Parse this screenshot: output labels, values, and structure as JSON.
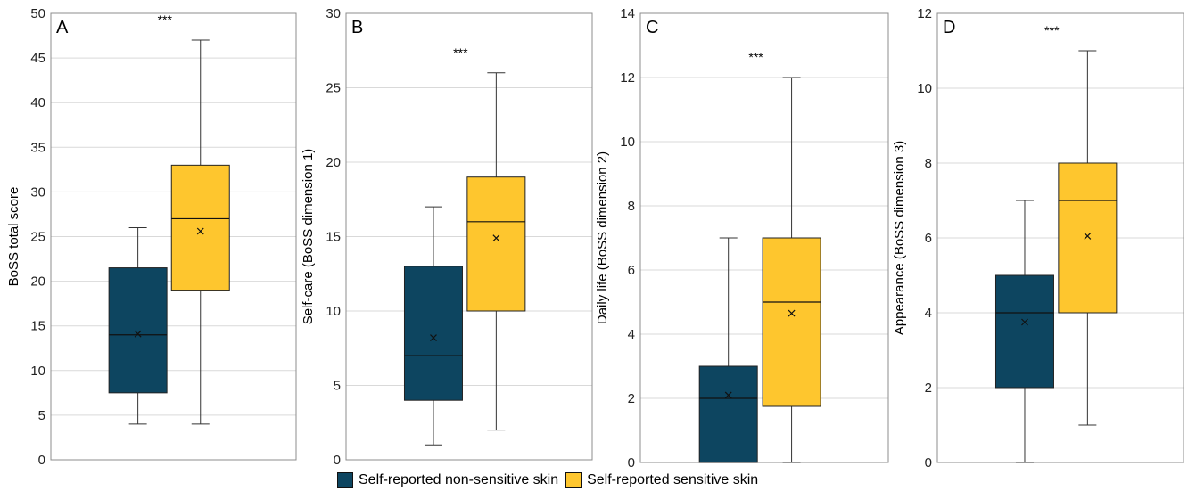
{
  "colors": {
    "non_sensitive": "#0d4560",
    "sensitive": "#fec62e",
    "grid": "#d9d9d9",
    "frame": "#8c8c8c"
  },
  "legend": {
    "items": [
      {
        "label": "Self-reported non-sensitive skin",
        "color": "#0d4560"
      },
      {
        "label": "Self-reported sensitive skin",
        "color": "#fec62e"
      }
    ]
  },
  "chart_data": [
    {
      "type": "box",
      "panel_label": "A",
      "significance": "***",
      "xlabel": "",
      "ylabel": "BoSS total score",
      "ylim": [
        0,
        50
      ],
      "ticks": [
        0,
        5,
        10,
        15,
        20,
        25,
        30,
        35,
        40,
        45,
        50
      ],
      "tick_labels": [
        "0",
        "5",
        "10",
        "15",
        "20",
        "25",
        "30",
        "35",
        "40",
        "45",
        "50"
      ],
      "grid": true,
      "series": [
        {
          "name": "Self-reported non-sensitive skin",
          "min": 4,
          "q1": 7.5,
          "median": 14,
          "q3": 21.5,
          "max": 26,
          "mean": 14.1
        },
        {
          "name": "Self-reported sensitive skin",
          "min": 4,
          "q1": 19,
          "median": 27,
          "q3": 33,
          "max": 47,
          "mean": 25.6
        }
      ]
    },
    {
      "type": "box",
      "panel_label": "B",
      "significance": "***",
      "xlabel": "",
      "ylabel": "Self-care (BoSS dimension 1)",
      "ylim": [
        0,
        30
      ],
      "ticks": [
        0,
        5,
        10,
        15,
        20,
        25,
        30
      ],
      "tick_labels": [
        "0",
        "5",
        "10",
        "15",
        "20",
        "25",
        "30"
      ],
      "grid": true,
      "series": [
        {
          "name": "Self-reported non-sensitive skin",
          "min": 1,
          "q1": 4,
          "median": 7,
          "q3": 13,
          "max": 17,
          "mean": 8.2
        },
        {
          "name": "Self-reported sensitive skin",
          "min": 2,
          "q1": 10,
          "median": 16,
          "q3": 19,
          "max": 26,
          "mean": 14.9
        }
      ]
    },
    {
      "type": "box",
      "panel_label": "C",
      "significance": "***",
      "xlabel": "",
      "ylabel": "Daily life (BoSS dimension 2)",
      "ylim": [
        0,
        14
      ],
      "ticks": [
        0,
        2,
        4,
        6,
        8,
        10,
        12,
        14
      ],
      "tick_labels": [
        "0",
        "2",
        "4",
        "6",
        "8",
        "10",
        "12",
        "14"
      ],
      "grid": true,
      "series": [
        {
          "name": "Self-reported non-sensitive skin",
          "min": 0,
          "q1": 0,
          "median": 2,
          "q3": 3,
          "max": 7,
          "mean": 2.1
        },
        {
          "name": "Self-reported sensitive skin",
          "min": 0,
          "q1": 1.75,
          "median": 5,
          "q3": 7,
          "max": 12,
          "mean": 4.65
        }
      ]
    },
    {
      "type": "box",
      "panel_label": "D",
      "significance": "***",
      "xlabel": "",
      "ylabel": "Appearance (BoSS dimension 3)",
      "ylim": [
        0,
        12
      ],
      "ticks": [
        0,
        2,
        4,
        6,
        8,
        10,
        12
      ],
      "tick_labels": [
        "0",
        "2",
        "4",
        "6",
        "8",
        "10",
        "12"
      ],
      "grid": true,
      "series": [
        {
          "name": "Self-reported non-sensitive skin",
          "min": 0,
          "q1": 2,
          "median": 4,
          "q3": 5,
          "max": 7,
          "mean": 3.75
        },
        {
          "name": "Self-reported sensitive skin",
          "min": 1,
          "q1": 4,
          "median": 7,
          "q3": 8,
          "max": 11,
          "mean": 6.05
        }
      ]
    }
  ]
}
